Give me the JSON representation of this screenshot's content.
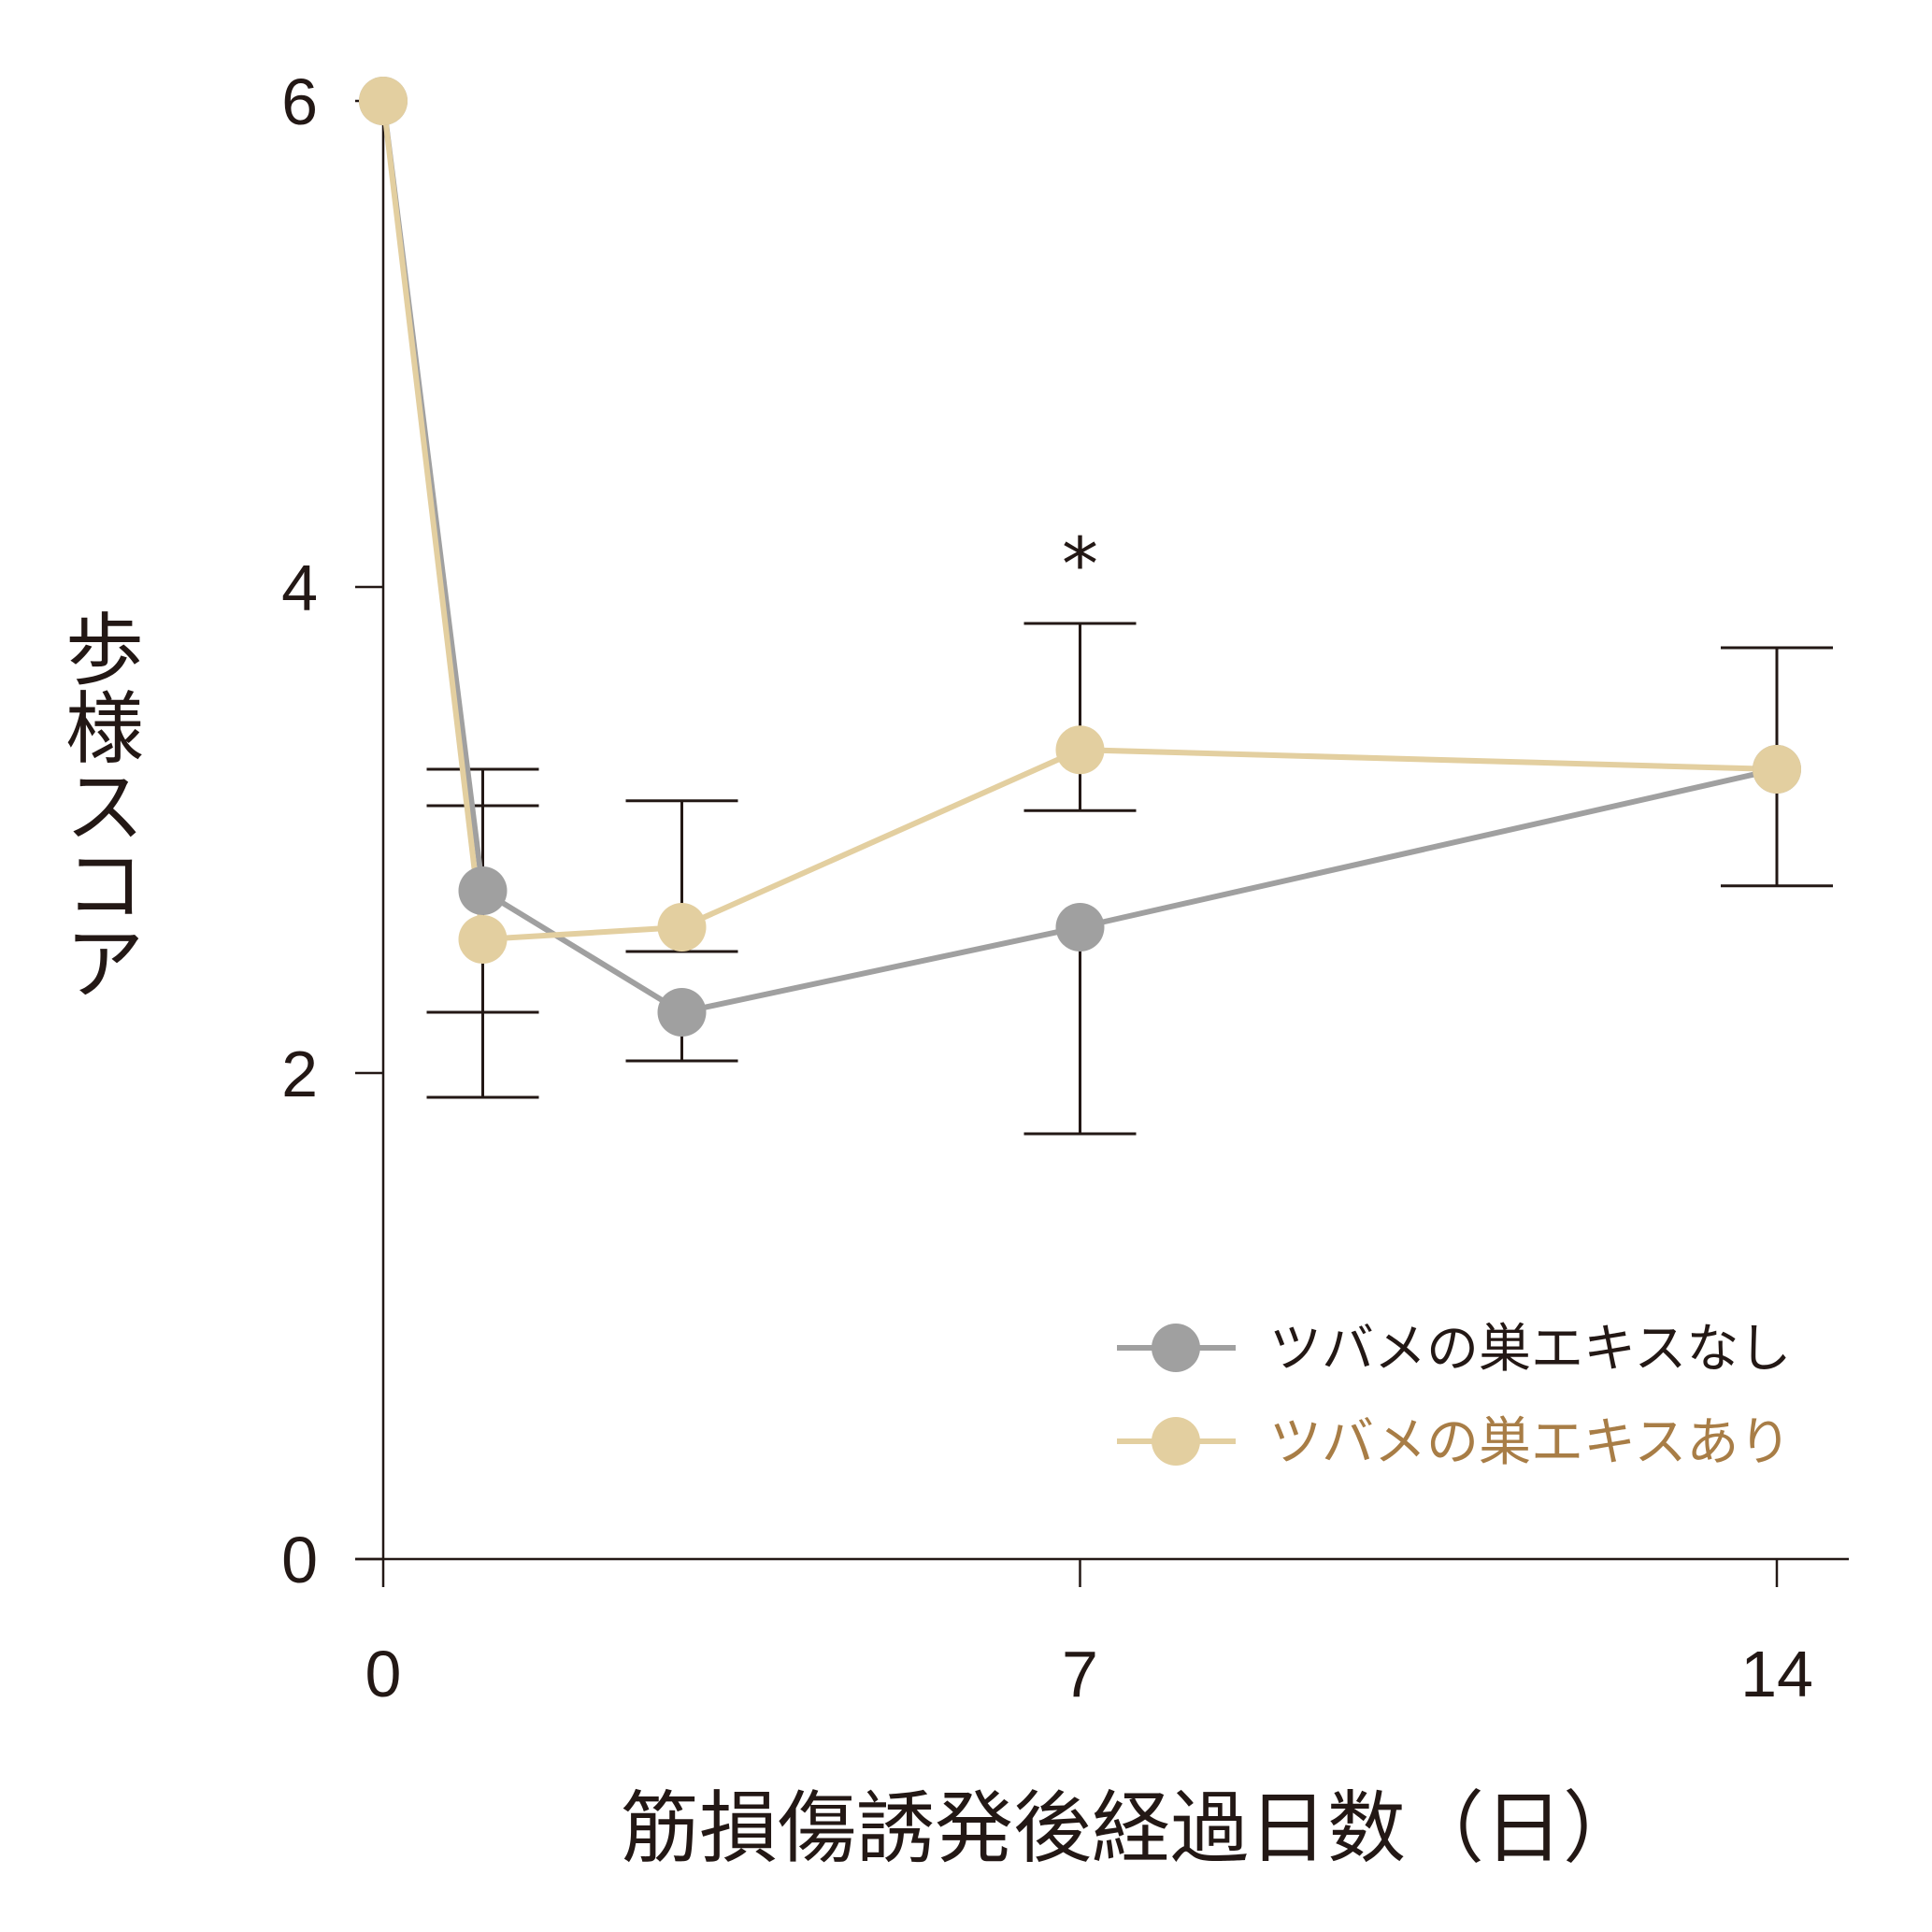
{
  "chart_data": {
    "type": "line",
    "title": "",
    "xlabel": "筋損傷誘発後経過日数（日）",
    "ylabel": "歩様スコア",
    "x_ticks": [
      0,
      7,
      14
    ],
    "y_ticks": [
      0,
      2,
      4,
      6
    ],
    "xlim": [
      0,
      14.7
    ],
    "ylim": [
      0,
      6
    ],
    "grid": false,
    "legend_position": "bottom-right",
    "series": [
      {
        "name": "ツバメの巣エキスなし",
        "color": "#a0a0a0",
        "label_color": "#231815",
        "x": [
          0,
          1,
          3,
          7,
          14
        ],
        "y": [
          6.0,
          2.75,
          2.25,
          2.6,
          3.25
        ],
        "error_low": [
          null,
          0.85,
          0.2,
          0.85,
          null
        ],
        "error_high": [
          null,
          0.35,
          null,
          null,
          0.5
        ]
      },
      {
        "name": "ツバメの巣エキスあり",
        "color": "#e3cfa0",
        "label_color": "#a87d46",
        "x": [
          0,
          1,
          3,
          7,
          14
        ],
        "y": [
          6.0,
          2.55,
          2.6,
          3.33,
          3.25
        ],
        "error_low": [
          null,
          0.3,
          0.1,
          0.25,
          0.48
        ],
        "error_high": [
          null,
          0.7,
          0.52,
          0.52,
          null
        ]
      }
    ],
    "annotations": [
      {
        "text": "*",
        "x": 7,
        "y": 4.2
      }
    ]
  }
}
